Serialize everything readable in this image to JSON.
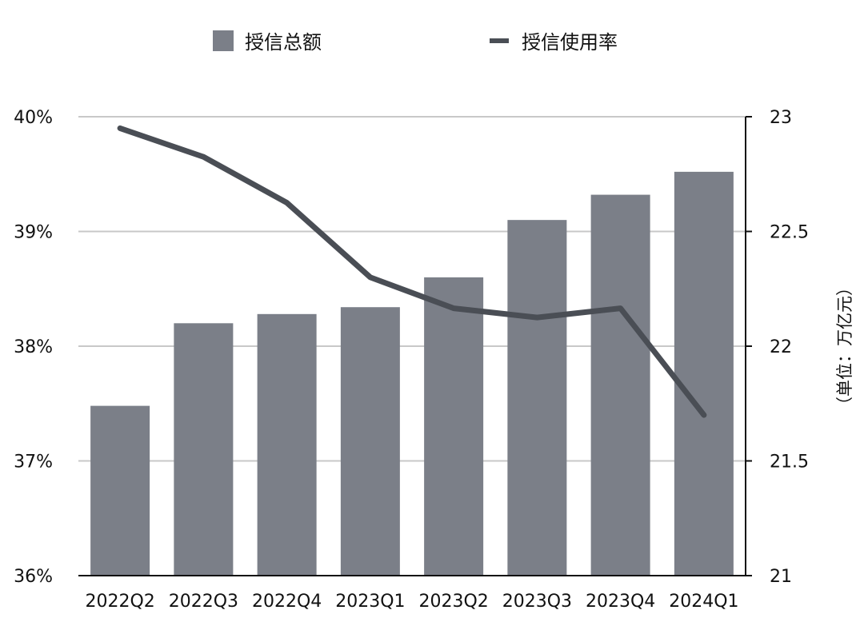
{
  "chart_data": {
    "type": "bar",
    "categories": [
      "2022Q2",
      "2022Q3",
      "2022Q4",
      "2023Q1",
      "2023Q2",
      "2023Q3",
      "2023Q4",
      "2024Q1"
    ],
    "series": [
      {
        "name": "授信总额",
        "type": "bar",
        "axis": "right",
        "values": [
          21.74,
          22.1,
          22.14,
          22.17,
          22.3,
          22.55,
          22.66,
          22.76
        ]
      },
      {
        "name": "授信使用率",
        "type": "line",
        "axis": "left",
        "values": [
          39.9,
          39.65,
          39.25,
          38.6,
          38.33,
          38.25,
          38.33,
          37.4
        ]
      }
    ],
    "y_left": {
      "range": [
        36,
        40
      ],
      "ticks": [
        36,
        37,
        38,
        39,
        40
      ],
      "tick_labels": [
        "36%",
        "37%",
        "38%",
        "39%",
        "40%"
      ]
    },
    "y_right": {
      "range": [
        21,
        23
      ],
      "ticks": [
        21,
        21.5,
        22,
        22.5,
        23
      ],
      "tick_labels": [
        "21",
        "21.5",
        "22",
        "22.5",
        "23"
      ],
      "label": "（单位：万亿元）"
    },
    "legend": {
      "placement": "top-center"
    },
    "grid": true,
    "colors": {
      "bar": "#7b7f88",
      "line": "#4a4e55",
      "grid": "#c8c8c8",
      "axis": "#111111"
    }
  }
}
